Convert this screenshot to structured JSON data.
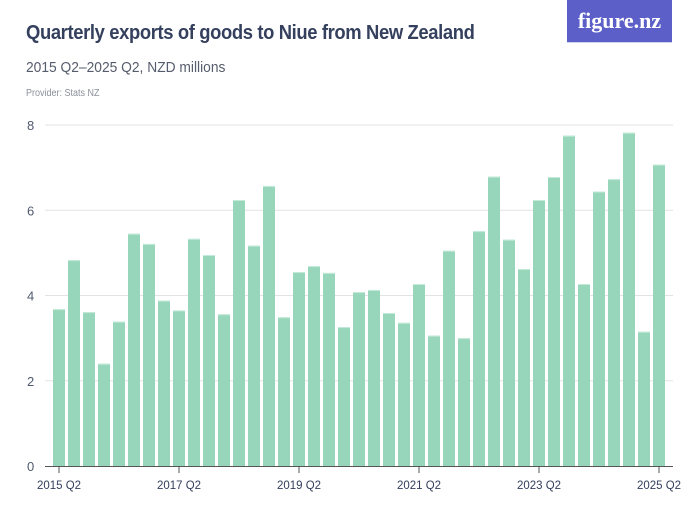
{
  "header": {
    "title": "Quarterly exports of goods to Niue from New Zealand",
    "subtitle": "2015 Q2–2025 Q2, NZD millions",
    "provider": "Provider: Stats NZ",
    "logo_text": "figure.nz"
  },
  "colors": {
    "bar": "#98d6bb",
    "bar_top": "#c4ead9",
    "grid": "#e3e3e3",
    "axis": "#555555",
    "logo_bg": "#5b5fc7",
    "title": "#34405d"
  },
  "chart_data": {
    "type": "bar",
    "title": "Quarterly exports of goods to Niue from New Zealand",
    "subtitle": "2015 Q2–2025 Q2, NZD millions",
    "xlabel": "",
    "ylabel": "NZD millions",
    "ylim": [
      0,
      8
    ],
    "yticks": [
      0,
      2,
      4,
      6,
      8
    ],
    "grid": true,
    "legend": null,
    "x_tick_labels": [
      "2015 Q2",
      "2017 Q2",
      "2019 Q2",
      "2021 Q2",
      "2023 Q2",
      "2025 Q2"
    ],
    "categories": [
      "2015 Q2",
      "2015 Q3",
      "2015 Q4",
      "2016 Q1",
      "2016 Q2",
      "2016 Q3",
      "2016 Q4",
      "2017 Q1",
      "2017 Q2",
      "2017 Q3",
      "2017 Q4",
      "2018 Q1",
      "2018 Q2",
      "2018 Q3",
      "2018 Q4",
      "2019 Q1",
      "2019 Q2",
      "2019 Q3",
      "2019 Q4",
      "2020 Q1",
      "2020 Q2",
      "2020 Q3",
      "2020 Q4",
      "2021 Q1",
      "2021 Q2",
      "2021 Q3",
      "2021 Q4",
      "2022 Q1",
      "2022 Q2",
      "2022 Q3",
      "2022 Q4",
      "2023 Q1",
      "2023 Q2",
      "2023 Q3",
      "2023 Q4",
      "2024 Q1",
      "2024 Q2",
      "2024 Q3",
      "2024 Q4",
      "2025 Q1",
      "2025 Q2"
    ],
    "values": [
      3.68,
      4.83,
      3.61,
      2.4,
      3.39,
      5.45,
      5.21,
      3.88,
      3.65,
      5.33,
      4.95,
      3.56,
      6.24,
      5.17,
      6.57,
      3.49,
      4.55,
      4.69,
      4.53,
      3.26,
      4.08,
      4.13,
      3.59,
      3.36,
      4.27,
      3.06,
      5.05,
      3.0,
      5.51,
      6.79,
      5.31,
      4.62,
      6.24,
      6.78,
      7.75,
      4.27,
      6.44,
      6.73,
      7.82,
      3.15,
      7.07
    ]
  }
}
